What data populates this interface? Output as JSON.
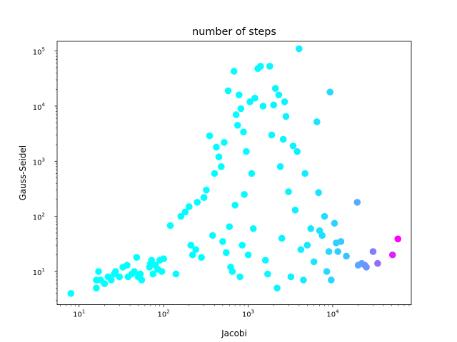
{
  "chart_data": {
    "type": "scatter",
    "title": "number of steps",
    "xlabel": "Jacobi",
    "ylabel": "Gauss-Seidel",
    "xscale": "log",
    "yscale": "log",
    "xlim": [
      5.5,
      85000
    ],
    "ylim": [
      2.5,
      150000
    ],
    "grid": false,
    "x_ticks": [
      {
        "value": 10,
        "base": "10",
        "exp": "1"
      },
      {
        "value": 100,
        "base": "10",
        "exp": "2"
      },
      {
        "value": 1000,
        "base": "10",
        "exp": "3"
      },
      {
        "value": 10000,
        "base": "10",
        "exp": "4"
      }
    ],
    "y_ticks": [
      {
        "value": 10,
        "base": "10",
        "exp": "1"
      },
      {
        "value": 100,
        "base": "10",
        "exp": "2"
      },
      {
        "value": 1000,
        "base": "10",
        "exp": "3"
      },
      {
        "value": 10000,
        "base": "10",
        "exp": "4"
      },
      {
        "value": 100000,
        "base": "10",
        "exp": "5"
      }
    ],
    "colormap": "cool",
    "color_stops": [
      "#00ffff",
      "#ff00ff"
    ],
    "color_by": "x",
    "points": [
      {
        "x": 8,
        "y": 4
      },
      {
        "x": 16,
        "y": 5
      },
      {
        "x": 16,
        "y": 7
      },
      {
        "x": 17,
        "y": 10
      },
      {
        "x": 18,
        "y": 7
      },
      {
        "x": 20,
        "y": 6
      },
      {
        "x": 22,
        "y": 8
      },
      {
        "x": 24,
        "y": 7
      },
      {
        "x": 26,
        "y": 9
      },
      {
        "x": 27,
        "y": 10
      },
      {
        "x": 30,
        "y": 8
      },
      {
        "x": 33,
        "y": 12
      },
      {
        "x": 37,
        "y": 13
      },
      {
        "x": 38,
        "y": 8
      },
      {
        "x": 42,
        "y": 9
      },
      {
        "x": 45,
        "y": 10
      },
      {
        "x": 48,
        "y": 18
      },
      {
        "x": 50,
        "y": 8
      },
      {
        "x": 53,
        "y": 9
      },
      {
        "x": 55,
        "y": 7
      },
      {
        "x": 68,
        "y": 12
      },
      {
        "x": 70,
        "y": 14
      },
      {
        "x": 72,
        "y": 16
      },
      {
        "x": 75,
        "y": 9
      },
      {
        "x": 80,
        "y": 13
      },
      {
        "x": 85,
        "y": 11
      },
      {
        "x": 90,
        "y": 16
      },
      {
        "x": 95,
        "y": 10
      },
      {
        "x": 100,
        "y": 17
      },
      {
        "x": 120,
        "y": 68
      },
      {
        "x": 140,
        "y": 9
      },
      {
        "x": 160,
        "y": 100
      },
      {
        "x": 180,
        "y": 120
      },
      {
        "x": 200,
        "y": 150
      },
      {
        "x": 210,
        "y": 30
      },
      {
        "x": 220,
        "y": 20
      },
      {
        "x": 240,
        "y": 25
      },
      {
        "x": 250,
        "y": 180
      },
      {
        "x": 280,
        "y": 18
      },
      {
        "x": 300,
        "y": 220
      },
      {
        "x": 320,
        "y": 300
      },
      {
        "x": 350,
        "y": 2900
      },
      {
        "x": 380,
        "y": 45
      },
      {
        "x": 400,
        "y": 600
      },
      {
        "x": 420,
        "y": 1800
      },
      {
        "x": 450,
        "y": 1200
      },
      {
        "x": 480,
        "y": 800
      },
      {
        "x": 500,
        "y": 35
      },
      {
        "x": 520,
        "y": 2200
      },
      {
        "x": 550,
        "y": 22
      },
      {
        "x": 580,
        "y": 19000
      },
      {
        "x": 600,
        "y": 65
      },
      {
        "x": 620,
        "y": 12
      },
      {
        "x": 650,
        "y": 10
      },
      {
        "x": 680,
        "y": 43000
      },
      {
        "x": 700,
        "y": 160
      },
      {
        "x": 720,
        "y": 7000
      },
      {
        "x": 750,
        "y": 4500
      },
      {
        "x": 780,
        "y": 16000
      },
      {
        "x": 800,
        "y": 8
      },
      {
        "x": 820,
        "y": 9000
      },
      {
        "x": 850,
        "y": 30
      },
      {
        "x": 880,
        "y": 3400
      },
      {
        "x": 900,
        "y": 250
      },
      {
        "x": 950,
        "y": 1500
      },
      {
        "x": 1000,
        "y": 20
      },
      {
        "x": 1050,
        "y": 12000
      },
      {
        "x": 1100,
        "y": 600
      },
      {
        "x": 1150,
        "y": 60
      },
      {
        "x": 1200,
        "y": 14000
      },
      {
        "x": 1300,
        "y": 48000
      },
      {
        "x": 1400,
        "y": 53000
      },
      {
        "x": 1500,
        "y": 10000
      },
      {
        "x": 1600,
        "y": 16
      },
      {
        "x": 1700,
        "y": 9
      },
      {
        "x": 1800,
        "y": 53000
      },
      {
        "x": 1900,
        "y": 3000
      },
      {
        "x": 2000,
        "y": 10500
      },
      {
        "x": 2100,
        "y": 21000
      },
      {
        "x": 2200,
        "y": 5
      },
      {
        "x": 2300,
        "y": 16000
      },
      {
        "x": 2400,
        "y": 800
      },
      {
        "x": 2500,
        "y": 40
      },
      {
        "x": 2600,
        "y": 2500
      },
      {
        "x": 2700,
        "y": 12000
      },
      {
        "x": 2800,
        "y": 6500
      },
      {
        "x": 3000,
        "y": 280
      },
      {
        "x": 3200,
        "y": 8
      },
      {
        "x": 3400,
        "y": 1900
      },
      {
        "x": 3600,
        "y": 130
      },
      {
        "x": 3800,
        "y": 1500
      },
      {
        "x": 4000,
        "y": 110000
      },
      {
        "x": 4200,
        "y": 25
      },
      {
        "x": 4500,
        "y": 7
      },
      {
        "x": 4700,
        "y": 600
      },
      {
        "x": 5000,
        "y": 30
      },
      {
        "x": 5500,
        "y": 60
      },
      {
        "x": 6000,
        "y": 15
      },
      {
        "x": 6500,
        "y": 5200
      },
      {
        "x": 6800,
        "y": 270
      },
      {
        "x": 7000,
        "y": 55
      },
      {
        "x": 7500,
        "y": 45
      },
      {
        "x": 8000,
        "y": 100
      },
      {
        "x": 8500,
        "y": 10
      },
      {
        "x": 9000,
        "y": 23
      },
      {
        "x": 9300,
        "y": 18000
      },
      {
        "x": 9600,
        "y": 7
      },
      {
        "x": 10500,
        "y": 75
      },
      {
        "x": 11000,
        "y": 33
      },
      {
        "x": 11500,
        "y": 23
      },
      {
        "x": 12500,
        "y": 35
      },
      {
        "x": 14500,
        "y": 19
      },
      {
        "x": 19500,
        "y": 180
      },
      {
        "x": 20000,
        "y": 13
      },
      {
        "x": 22000,
        "y": 14
      },
      {
        "x": 24000,
        "y": 13
      },
      {
        "x": 25000,
        "y": 12
      },
      {
        "x": 30000,
        "y": 23
      },
      {
        "x": 34000,
        "y": 14
      },
      {
        "x": 51000,
        "y": 20
      },
      {
        "x": 59000,
        "y": 39
      }
    ]
  }
}
